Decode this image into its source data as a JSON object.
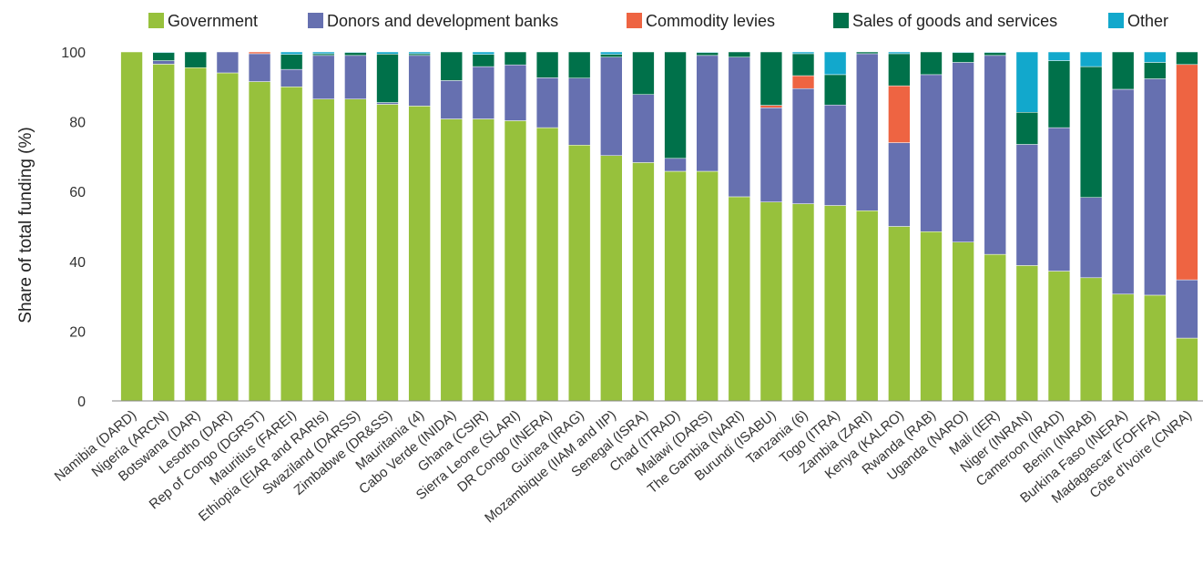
{
  "chart_data": {
    "type": "bar",
    "stacked": true,
    "ylabel": "Share of total funding (%)",
    "ylim": [
      0,
      100
    ],
    "yticks": [
      0,
      20,
      40,
      60,
      80,
      100
    ],
    "grid": false,
    "legend_position": "top",
    "categories": [
      "Namibia (DARD)",
      "Nigeria (ARCN)",
      "Botswana (DAR)",
      "Lesotho (DAR)",
      "Rep of Congo (DGRST)",
      "Mauritius (FAREI)",
      "Ethiopia (EIAR and RARIs)",
      "Swaziland (DARSS)",
      "Zimbabwe (DR&SS)",
      "Mauritania (4)",
      "Cabo Verde (INIDA)",
      "Ghana (CSIR)",
      "Sierra Leone (SLARI)",
      "DR Congo (INERA)",
      "Guinea (IRAG)",
      "Mozambique (IIAM and IIP)",
      "Senegal (ISRA)",
      "Chad (ITRAD)",
      "Malawi (DARS)",
      "The Gambia (NARI)",
      "Burundi (ISABU)",
      "Tanzania (6)",
      "Togo (ITRA)",
      "Zambia (ZARI)",
      "Kenya (KALRO)",
      "Rwanda (RAB)",
      "Uganda (NARO)",
      "Mali (IER)",
      "Niger (INRAN)",
      "Cameroon (IRAD)",
      "Benin (INRAB)",
      "Burkina Faso (INERA)",
      "Madagascar (FOFIFA)",
      "Côte d'Ivoire (CNRA)"
    ],
    "series": [
      {
        "name": "Government",
        "color": "#97c13c",
        "values": [
          100,
          96.5,
          95.5,
          94,
          91.5,
          90,
          86.5,
          86.5,
          85,
          84.5,
          80.8,
          80.8,
          80.3,
          78.3,
          73.3,
          70.3,
          68.3,
          65.8,
          65.8,
          58.5,
          57,
          56.5,
          56,
          54.5,
          50,
          48.5,
          45.5,
          42,
          38.8,
          37.2,
          35.3,
          30.6,
          30.3,
          18
        ]
      },
      {
        "name": "Donors and development banks",
        "color": "#6670b0",
        "values": [
          0,
          1,
          0,
          6,
          8,
          5,
          12.5,
          12.5,
          0.5,
          14.5,
          11,
          15,
          16,
          14.3,
          19.2,
          28.2,
          19.5,
          3.7,
          33.2,
          40,
          27,
          33,
          28.8,
          45,
          24,
          45,
          51.5,
          57,
          34.7,
          41.1,
          23,
          58.7,
          62,
          16.7
        ]
      },
      {
        "name": "Commodity levies",
        "color": "#ee6442",
        "values": [
          0,
          0,
          0,
          0,
          0.5,
          0,
          0,
          0,
          0,
          0,
          0,
          0,
          0,
          0,
          0,
          0,
          0,
          0,
          0,
          0,
          0.7,
          3.7,
          0,
          0,
          16.3,
          0,
          0,
          0,
          0,
          0,
          0,
          0,
          0,
          61.7
        ]
      },
      {
        "name": "Sales of goods and services",
        "color": "#00714a",
        "values": [
          0,
          2.3,
          4.5,
          0,
          0,
          4.3,
          0.5,
          0.8,
          13.9,
          0.5,
          8.2,
          3.5,
          3.7,
          7.4,
          7.5,
          0.8,
          12.2,
          30.5,
          0.8,
          1.5,
          15.3,
          6.3,
          8.7,
          0.5,
          9.2,
          6.5,
          2.8,
          0.8,
          9.2,
          19.2,
          37.5,
          10.7,
          4.7,
          3.6
        ]
      },
      {
        "name": "Other",
        "color": "#12a8cc",
        "values": [
          0,
          0.2,
          0,
          0,
          0,
          0.7,
          0.5,
          0.2,
          0.6,
          0.5,
          0,
          0.7,
          0,
          0,
          0,
          0.7,
          0,
          0,
          0.2,
          0,
          0,
          0.5,
          6.5,
          0,
          0.5,
          0,
          0.2,
          0.2,
          17.3,
          2.5,
          4.2,
          0,
          3,
          0
        ]
      }
    ]
  }
}
